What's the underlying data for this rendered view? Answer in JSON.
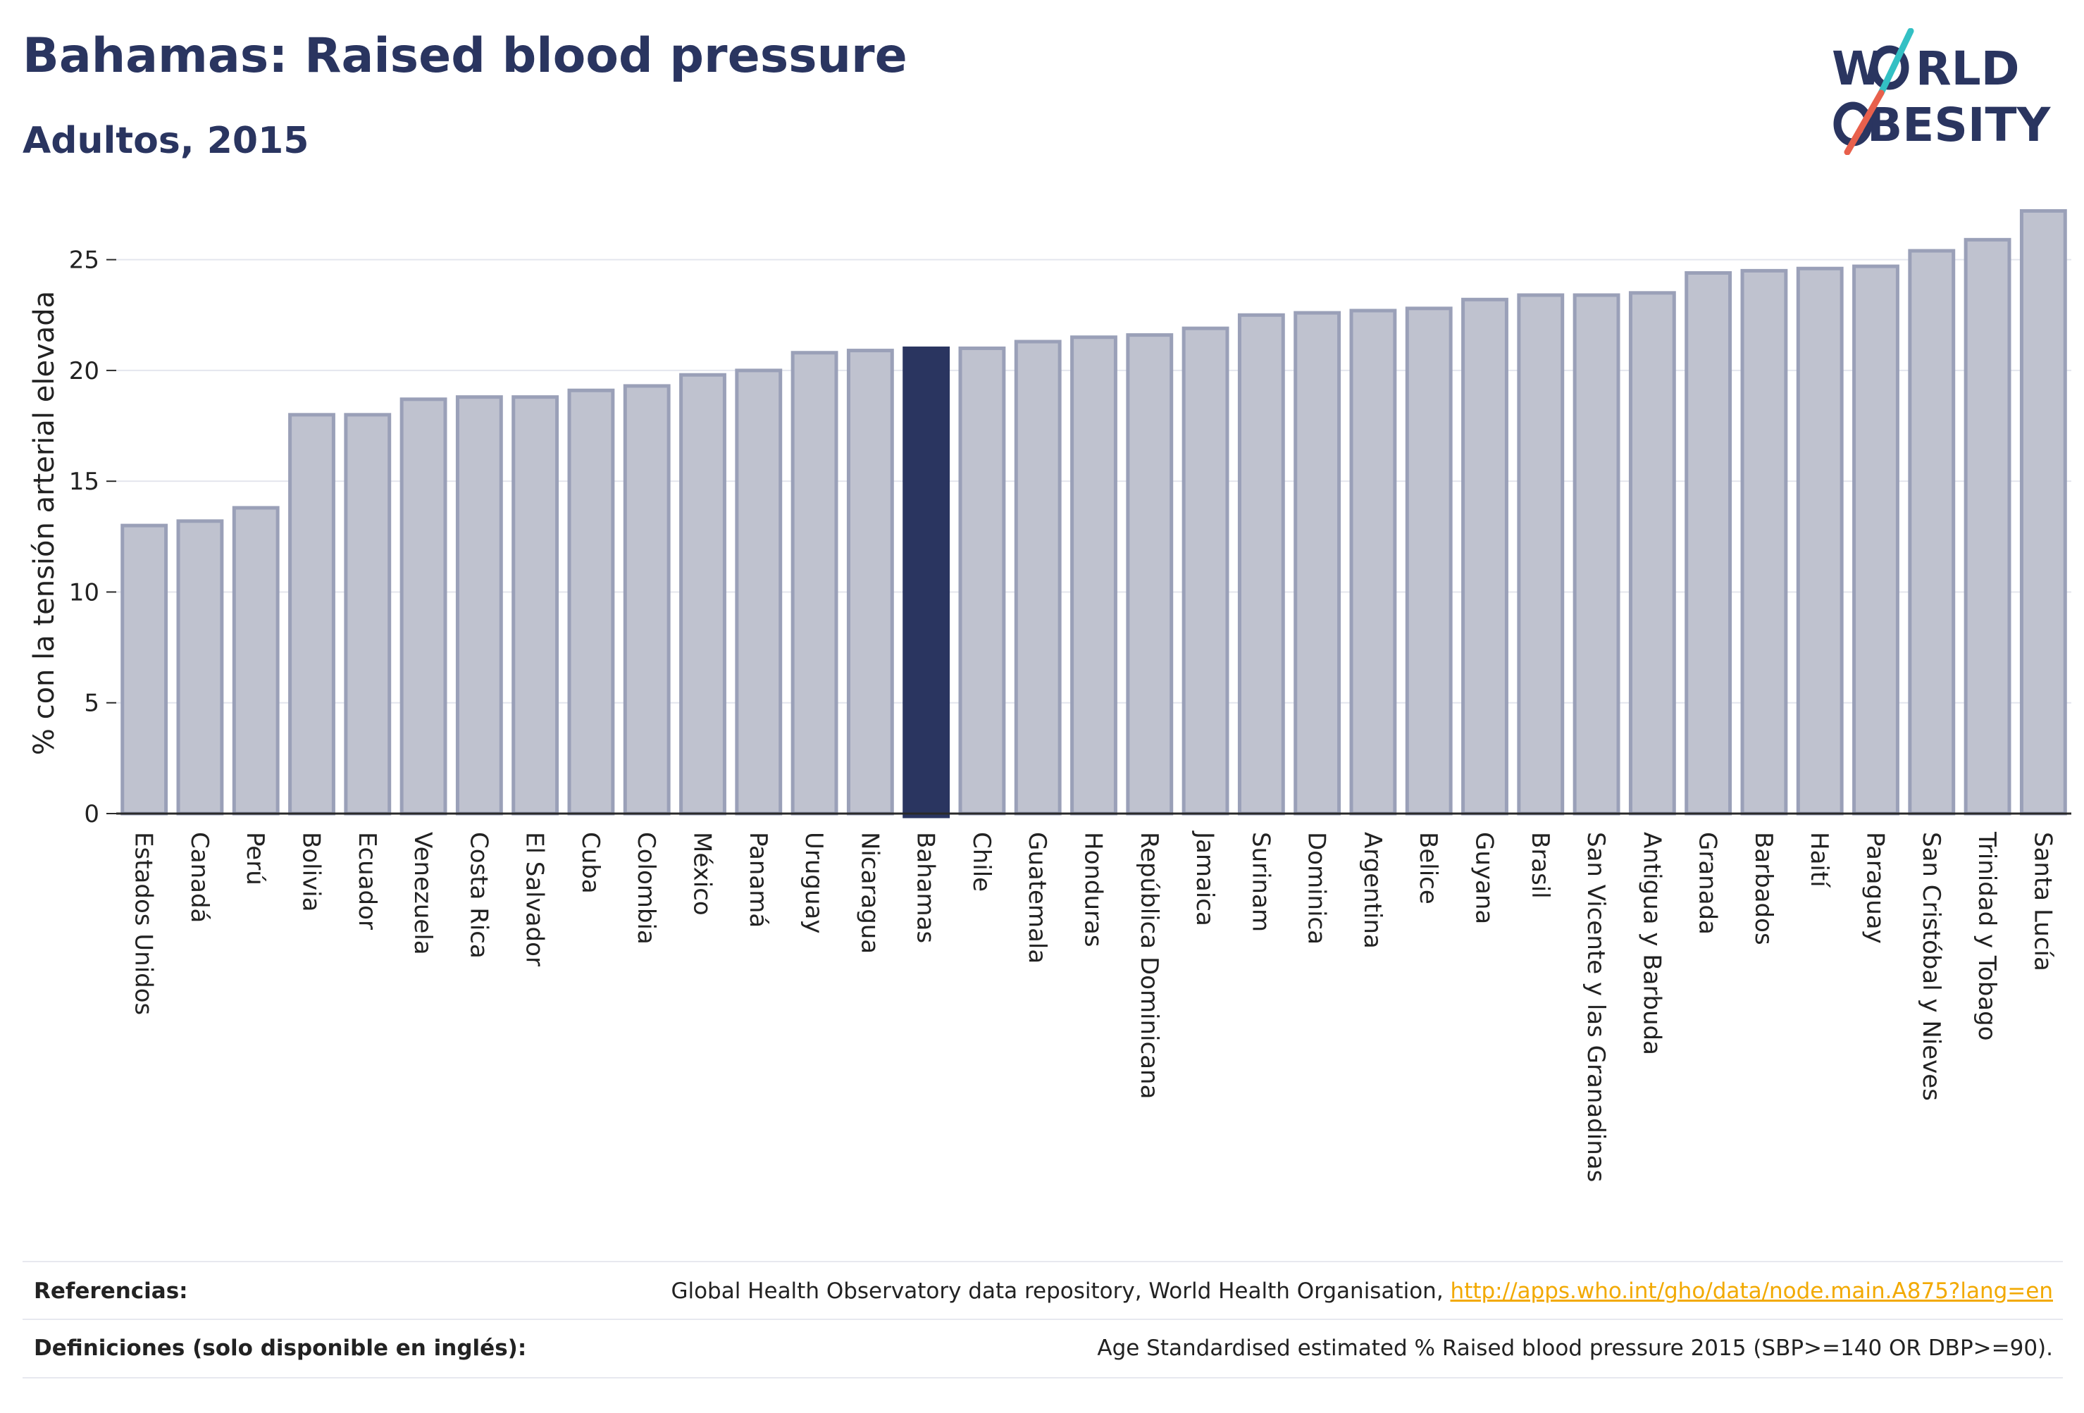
{
  "header": {
    "title": "Bahamas: Raised blood pressure",
    "subtitle": "Adultos, 2015"
  },
  "logo": {
    "line1": "W",
    "line1_rest": "RLD",
    "line2": "BESITY",
    "colors": {
      "text": "#2a3560",
      "slash_top": "#33c0c4",
      "slash_bottom": "#e8604c"
    }
  },
  "colors": {
    "bar_default": "#bfc2cf",
    "bar_default_stroke": "#9aa0b8",
    "bar_highlight": "#2a3560",
    "grid": "#e4e6ee",
    "axis": "#2a2a2a"
  },
  "chart_data": {
    "type": "bar",
    "title": "Bahamas: Raised blood pressure",
    "subtitle": "Adultos, 2015",
    "xlabel": "",
    "ylabel": "% con la tensión arterial elevada",
    "ylim": [
      0,
      27.5
    ],
    "yticks": [
      0,
      5,
      10,
      15,
      20,
      25
    ],
    "grid": true,
    "highlight": "Bahamas",
    "categories": [
      "Estados Unidos",
      "Canadá",
      "Perú",
      "Bolivia",
      "Ecuador",
      "Venezuela",
      "Costa Rica",
      "El Salvador",
      "Cuba",
      "Colombia",
      "México",
      "Panamá",
      "Uruguay",
      "Nicaragua",
      "Bahamas",
      "Chile",
      "Guatemala",
      "Honduras",
      "República Dominicana",
      "Jamaica",
      "Surinam",
      "Dominica",
      "Argentina",
      "Belice",
      "Guyana",
      "Brasil",
      "San Vicente y las Granadinas",
      "Antigua y Barbuda",
      "Granada",
      "Barbados",
      "Haití",
      "Paraguay",
      "San Cristóbal y Nieves",
      "Trinidad y Tobago",
      "Santa Lucía"
    ],
    "values": [
      13.0,
      13.2,
      13.8,
      18.0,
      18.0,
      18.7,
      18.8,
      18.8,
      19.1,
      19.3,
      19.8,
      20.0,
      20.8,
      20.9,
      21.0,
      21.0,
      21.3,
      21.5,
      21.6,
      21.9,
      22.5,
      22.6,
      22.7,
      22.8,
      23.2,
      23.4,
      23.4,
      23.5,
      24.4,
      24.5,
      24.6,
      24.7,
      25.4,
      25.9,
      27.2
    ]
  },
  "footer": {
    "references_label": "Referencias:",
    "references_text": "Global Health Observatory data repository, World Health Organisation, ",
    "references_link": "http://apps.who.int/gho/data/node.main.A875?lang=en",
    "definitions_label": "Definiciones (solo disponible en inglés):",
    "definitions_text": "Age Standardised estimated % Raised blood pressure 2015 (SBP>=140 OR DBP>=90)."
  }
}
